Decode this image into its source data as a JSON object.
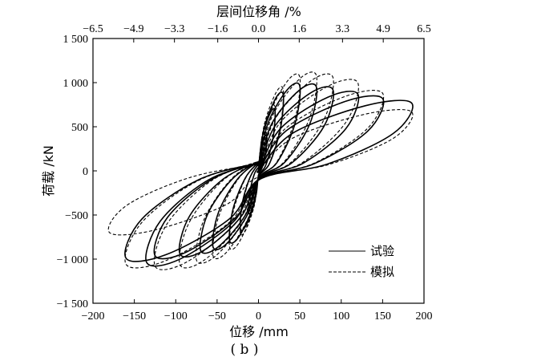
{
  "chart_data": {
    "type": "line",
    "title": "",
    "subfigure_label": "( b )",
    "xlabel": "位移 /mm",
    "ylabel": "荷载 /kN",
    "x2label": "层间位移角 /%",
    "xlim": [
      -200,
      200
    ],
    "ylim": [
      -1500,
      1500
    ],
    "xticks": [
      -200,
      -150,
      -100,
      -50,
      0,
      50,
      100,
      150,
      200
    ],
    "xtick_labels": [
      "−200",
      "−150",
      "−100",
      "−50",
      "0",
      "50",
      "100",
      "150",
      "200"
    ],
    "yticks": [
      -1500,
      -1000,
      -500,
      0,
      500,
      1000,
      1500
    ],
    "ytick_labels": [
      "−1 500",
      "−1 000",
      "−500",
      "0",
      "500",
      "1 000",
      "1 500"
    ],
    "x2ticks": [
      -6.5,
      -4.9,
      -3.3,
      -1.6,
      0.0,
      1.6,
      3.3,
      4.9,
      6.5
    ],
    "x2tick_labels": [
      "−6.5",
      "−4.9",
      "−3.3",
      "−1.6",
      "0.0",
      "1.6",
      "3.3",
      "4.9",
      "6.5"
    ],
    "legend_position": "bottom-right",
    "grid": false,
    "series": [
      {
        "name": "试验",
        "style": "solid",
        "color": "#000000",
        "cycles": [
          {
            "dmax": 10,
            "fmax": 390,
            "dmin": -12,
            "fmin": -470
          },
          {
            "dmax": 20,
            "fmax": 680,
            "dmin": -22,
            "fmin": -650
          },
          {
            "dmax": 30,
            "fmax": 860,
            "dmin": -35,
            "fmin": -790
          },
          {
            "dmax": 50,
            "fmax": 960,
            "dmin": -55,
            "fmin": -860
          },
          {
            "dmax": 70,
            "fmax": 950,
            "dmin": -70,
            "fmin": -900
          },
          {
            "dmax": 90,
            "fmax": 920,
            "dmin": -95,
            "fmin": -940
          },
          {
            "dmax": 120,
            "fmax": 870,
            "dmin": -125,
            "fmin": -960
          },
          {
            "dmax": 150,
            "fmax": 820,
            "dmin": -160,
            "fmin": -990
          },
          {
            "dmax": 185,
            "fmax": 770,
            "dmin": -135,
            "fmin": -1040
          }
        ]
      },
      {
        "name": "模拟",
        "style": "dashed",
        "color": "#000000",
        "cycles": [
          {
            "dmax": 10,
            "fmax": 420,
            "dmin": -12,
            "fmin": -440
          },
          {
            "dmax": 20,
            "fmax": 720,
            "dmin": -22,
            "fmin": -700
          },
          {
            "dmax": 30,
            "fmax": 920,
            "dmin": -35,
            "fmin": -860
          },
          {
            "dmax": 50,
            "fmax": 1060,
            "dmin": -55,
            "fmin": -960
          },
          {
            "dmax": 70,
            "fmax": 1080,
            "dmin": -75,
            "fmin": -1010
          },
          {
            "dmax": 90,
            "fmax": 1060,
            "dmin": -95,
            "fmin": -1060
          },
          {
            "dmax": 120,
            "fmax": 1000,
            "dmin": -125,
            "fmin": -1080
          },
          {
            "dmax": 150,
            "fmax": 880,
            "dmin": -160,
            "fmin": -1060
          },
          {
            "dmax": 185,
            "fmax": 670,
            "dmin": -180,
            "fmin": -700
          }
        ]
      }
    ]
  }
}
